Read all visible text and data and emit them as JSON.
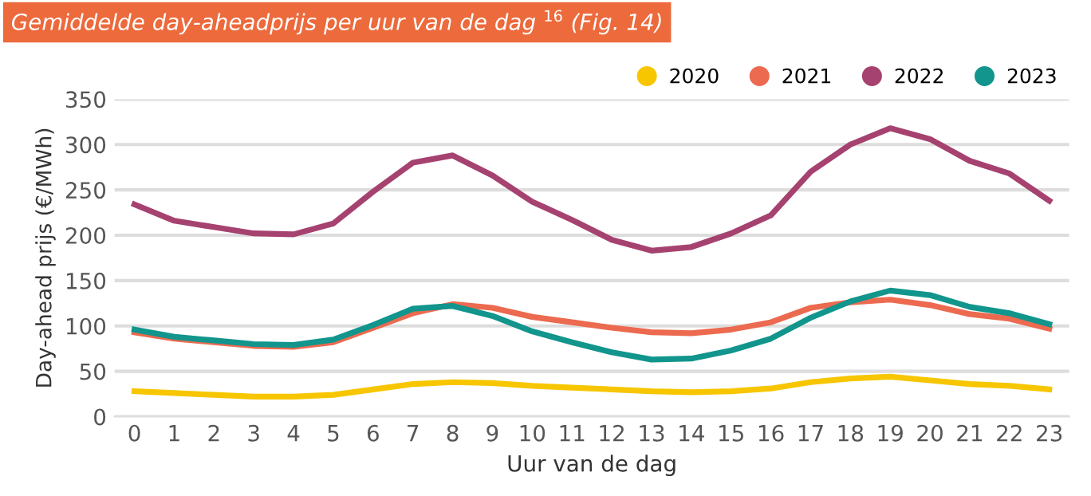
{
  "chart_data": {
    "type": "line",
    "title": "Gemiddelde day-aheadprijs per uur van de dag $^{16}$ (Fig. 14)",
    "xlabel": "Uur van de dag",
    "ylabel": "Day-ahead prijs (€/MWh)",
    "categories": [
      "0",
      "1",
      "2",
      "3",
      "4",
      "5",
      "6",
      "7",
      "8",
      "9",
      "10",
      "11",
      "12",
      "13",
      "14",
      "15",
      "16",
      "17",
      "18",
      "19",
      "20",
      "21",
      "22",
      "23"
    ],
    "series": [
      {
        "name": "2020",
        "color": "#f7c600",
        "values": [
          28,
          26,
          24,
          22,
          22,
          24,
          30,
          36,
          38,
          37,
          34,
          32,
          30,
          28,
          27,
          28,
          31,
          38,
          42,
          44,
          40,
          36,
          34,
          30
        ]
      },
      {
        "name": "2021",
        "color": "#ec6a4f",
        "values": [
          93,
          86,
          82,
          78,
          77,
          82,
          98,
          114,
          124,
          120,
          110,
          104,
          98,
          93,
          92,
          96,
          104,
          120,
          126,
          129,
          123,
          113,
          108,
          97
        ]
      },
      {
        "name": "2022",
        "color": "#a6426f",
        "values": [
          234,
          216,
          209,
          202,
          201,
          213,
          248,
          280,
          288,
          266,
          237,
          217,
          195,
          183,
          187,
          202,
          222,
          270,
          300,
          318,
          306,
          282,
          268,
          238
        ]
      },
      {
        "name": "2023",
        "color": "#11958c",
        "values": [
          96,
          88,
          84,
          80,
          79,
          85,
          101,
          119,
          122,
          111,
          94,
          82,
          71,
          63,
          64,
          73,
          86,
          109,
          127,
          139,
          134,
          121,
          114,
          102
        ]
      }
    ],
    "ylim": [
      0,
      350
    ],
    "yticks": [
      0,
      50,
      100,
      150,
      200,
      250,
      300,
      350
    ],
    "grid": "y",
    "legend": "top right",
    "marker": "none",
    "line_style": "solid"
  }
}
